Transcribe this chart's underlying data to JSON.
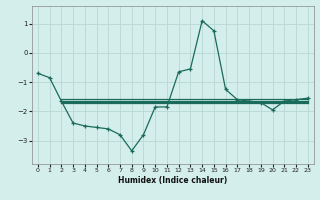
{
  "xlabel": "Humidex (Indice chaleur)",
  "ylabel": "",
  "bg_color": "#d4eeeb",
  "grid_color": "#b8d8d4",
  "line_color": "#1a6b5a",
  "xlim": [
    -0.5,
    23.5
  ],
  "ylim": [
    -3.8,
    1.6
  ],
  "yticks": [
    -3,
    -2,
    -1,
    0,
    1
  ],
  "xticks": [
    0,
    1,
    2,
    3,
    4,
    5,
    6,
    7,
    8,
    9,
    10,
    11,
    12,
    13,
    14,
    15,
    16,
    17,
    18,
    19,
    20,
    21,
    22,
    23
  ],
  "line1_x": [
    0,
    1,
    2,
    3,
    4,
    5,
    6,
    7,
    8,
    9,
    10,
    11,
    12,
    13,
    14,
    15,
    16,
    17,
    18,
    19,
    20,
    21,
    22,
    23
  ],
  "line1_y": [
    -0.7,
    -0.85,
    -1.65,
    -2.4,
    -2.5,
    -2.55,
    -2.6,
    -2.8,
    -3.35,
    -2.8,
    -1.85,
    -1.85,
    -0.65,
    -0.55,
    1.1,
    0.75,
    -1.25,
    -1.6,
    -1.65,
    -1.7,
    -1.95,
    -1.65,
    -1.6,
    -1.55
  ],
  "flat_lines": [
    {
      "x": [
        2,
        23
      ],
      "y": [
        -1.58,
        -1.58
      ]
    },
    {
      "x": [
        2,
        23
      ],
      "y": [
        -1.63,
        -1.63
      ]
    },
    {
      "x": [
        2,
        23
      ],
      "y": [
        -1.68,
        -1.68
      ]
    },
    {
      "x": [
        2,
        23
      ],
      "y": [
        -1.73,
        -1.73
      ]
    }
  ]
}
